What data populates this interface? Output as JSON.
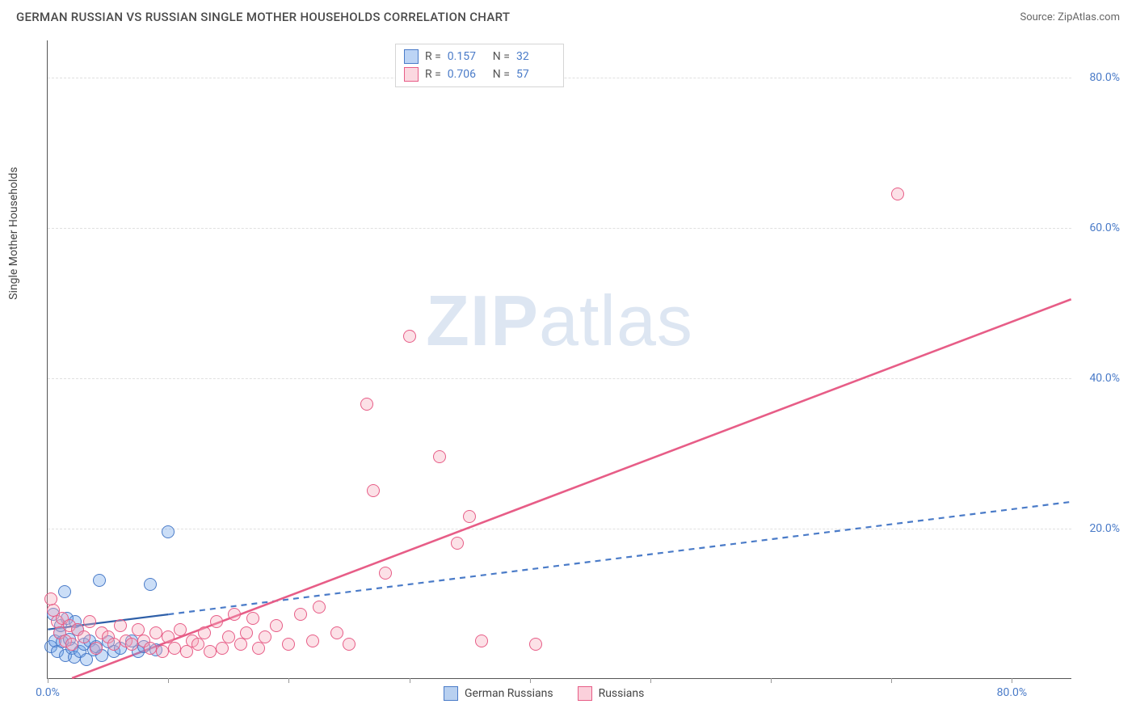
{
  "header": {
    "title": "GERMAN RUSSIAN VS RUSSIAN SINGLE MOTHER HOUSEHOLDS CORRELATION CHART",
    "source": "Source: ZipAtlas.com"
  },
  "watermark": {
    "part1": "ZIP",
    "part2": "atlas"
  },
  "chart": {
    "type": "scatter",
    "y_axis_label": "Single Mother Households",
    "background_color": "#ffffff",
    "grid_color": "#e0e0e0",
    "axis_text_color": "#4a7bc8",
    "xlim": [
      0,
      85
    ],
    "ylim": [
      0,
      85
    ],
    "y_ticks": [
      {
        "value": 20,
        "label": "20.0%"
      },
      {
        "value": 40,
        "label": "40.0%"
      },
      {
        "value": 60,
        "label": "60.0%"
      },
      {
        "value": 80,
        "label": "80.0%"
      }
    ],
    "x_tick_values": [
      0,
      10,
      20,
      30,
      40,
      50,
      60,
      70,
      80
    ],
    "x_origin_label": "0.0%",
    "x_end_label": "80.0%",
    "point_radius": 8,
    "point_fill_opacity": 0.35,
    "series": [
      {
        "name": "German Russians",
        "color": "#6aa0e8",
        "stroke": "#4a7bc8",
        "r": "0.157",
        "n": "32",
        "trend": {
          "x1": 0,
          "y1": 6.5,
          "x2": 85,
          "y2": 23.5,
          "solid_until_x": 10,
          "line_width": 2.2,
          "solid_color": "#2e5fa8",
          "dash_color": "#4a7bc8"
        },
        "points": [
          [
            0.3,
            4.2
          ],
          [
            0.6,
            5.0
          ],
          [
            0.8,
            3.5
          ],
          [
            1.0,
            6.0
          ],
          [
            1.2,
            4.8
          ],
          [
            1.4,
            11.5
          ],
          [
            1.5,
            3.0
          ],
          [
            1.8,
            5.2
          ],
          [
            2.0,
            4.0
          ],
          [
            2.2,
            2.8
          ],
          [
            2.5,
            6.5
          ],
          [
            2.7,
            3.5
          ],
          [
            3.0,
            4.5
          ],
          [
            3.2,
            2.5
          ],
          [
            3.5,
            5.0
          ],
          [
            3.8,
            3.8
          ],
          [
            4.0,
            4.2
          ],
          [
            4.3,
            13.0
          ],
          [
            4.5,
            3.0
          ],
          [
            5.0,
            4.8
          ],
          [
            5.5,
            3.5
          ],
          [
            6.0,
            4.0
          ],
          [
            7.0,
            5.0
          ],
          [
            7.5,
            3.5
          ],
          [
            8.0,
            4.2
          ],
          [
            8.5,
            12.5
          ],
          [
            9.0,
            3.8
          ],
          [
            10.0,
            19.5
          ],
          [
            0.5,
            8.5
          ],
          [
            1.1,
            7.0
          ],
          [
            1.6,
            8.0
          ],
          [
            2.3,
            7.5
          ]
        ]
      },
      {
        "name": "Russians",
        "color": "#f7a8bb",
        "stroke": "#e75d87",
        "r": "0.706",
        "n": "57",
        "trend": {
          "x1": 2,
          "y1": 0,
          "x2": 85,
          "y2": 50.5,
          "solid_until_x": 85,
          "line_width": 2.6,
          "solid_color": "#e75d87"
        },
        "points": [
          [
            0.5,
            9.0
          ],
          [
            0.8,
            7.5
          ],
          [
            1.0,
            6.0
          ],
          [
            1.2,
            8.0
          ],
          [
            1.5,
            5.0
          ],
          [
            1.8,
            7.0
          ],
          [
            2.0,
            4.5
          ],
          [
            2.5,
            6.5
          ],
          [
            3.0,
            5.5
          ],
          [
            3.5,
            7.5
          ],
          [
            4.0,
            4.0
          ],
          [
            4.5,
            6.0
          ],
          [
            5.0,
            5.5
          ],
          [
            5.5,
            4.5
          ],
          [
            6.0,
            7.0
          ],
          [
            6.5,
            5.0
          ],
          [
            7.0,
            4.5
          ],
          [
            7.5,
            6.5
          ],
          [
            8.0,
            5.0
          ],
          [
            8.5,
            4.0
          ],
          [
            9.0,
            6.0
          ],
          [
            9.5,
            3.5
          ],
          [
            10.0,
            5.5
          ],
          [
            10.5,
            4.0
          ],
          [
            11.0,
            6.5
          ],
          [
            11.5,
            3.5
          ],
          [
            12.0,
            5.0
          ],
          [
            12.5,
            4.5
          ],
          [
            13.0,
            6.0
          ],
          [
            13.5,
            3.5
          ],
          [
            14.0,
            7.5
          ],
          [
            14.5,
            4.0
          ],
          [
            15.0,
            5.5
          ],
          [
            15.5,
            8.5
          ],
          [
            16.0,
            4.5
          ],
          [
            16.5,
            6.0
          ],
          [
            17.0,
            8.0
          ],
          [
            17.5,
            4.0
          ],
          [
            18.0,
            5.5
          ],
          [
            19.0,
            7.0
          ],
          [
            20.0,
            4.5
          ],
          [
            21.0,
            8.5
          ],
          [
            22.0,
            5.0
          ],
          [
            22.5,
            9.5
          ],
          [
            24.0,
            6.0
          ],
          [
            25.0,
            4.5
          ],
          [
            26.5,
            36.5
          ],
          [
            27.0,
            25.0
          ],
          [
            28.0,
            14.0
          ],
          [
            30.0,
            45.5
          ],
          [
            32.5,
            29.5
          ],
          [
            34.0,
            18.0
          ],
          [
            35.0,
            21.5
          ],
          [
            36.0,
            5.0
          ],
          [
            40.5,
            4.5
          ],
          [
            70.5,
            64.5
          ],
          [
            0.3,
            10.5
          ]
        ]
      }
    ],
    "legend_bottom": [
      {
        "label": "German Russians",
        "swatch_fill": "#b8d0f0",
        "swatch_stroke": "#4a7bc8"
      },
      {
        "label": "Russians",
        "swatch_fill": "#fbd0db",
        "swatch_stroke": "#e75d87"
      }
    ]
  }
}
